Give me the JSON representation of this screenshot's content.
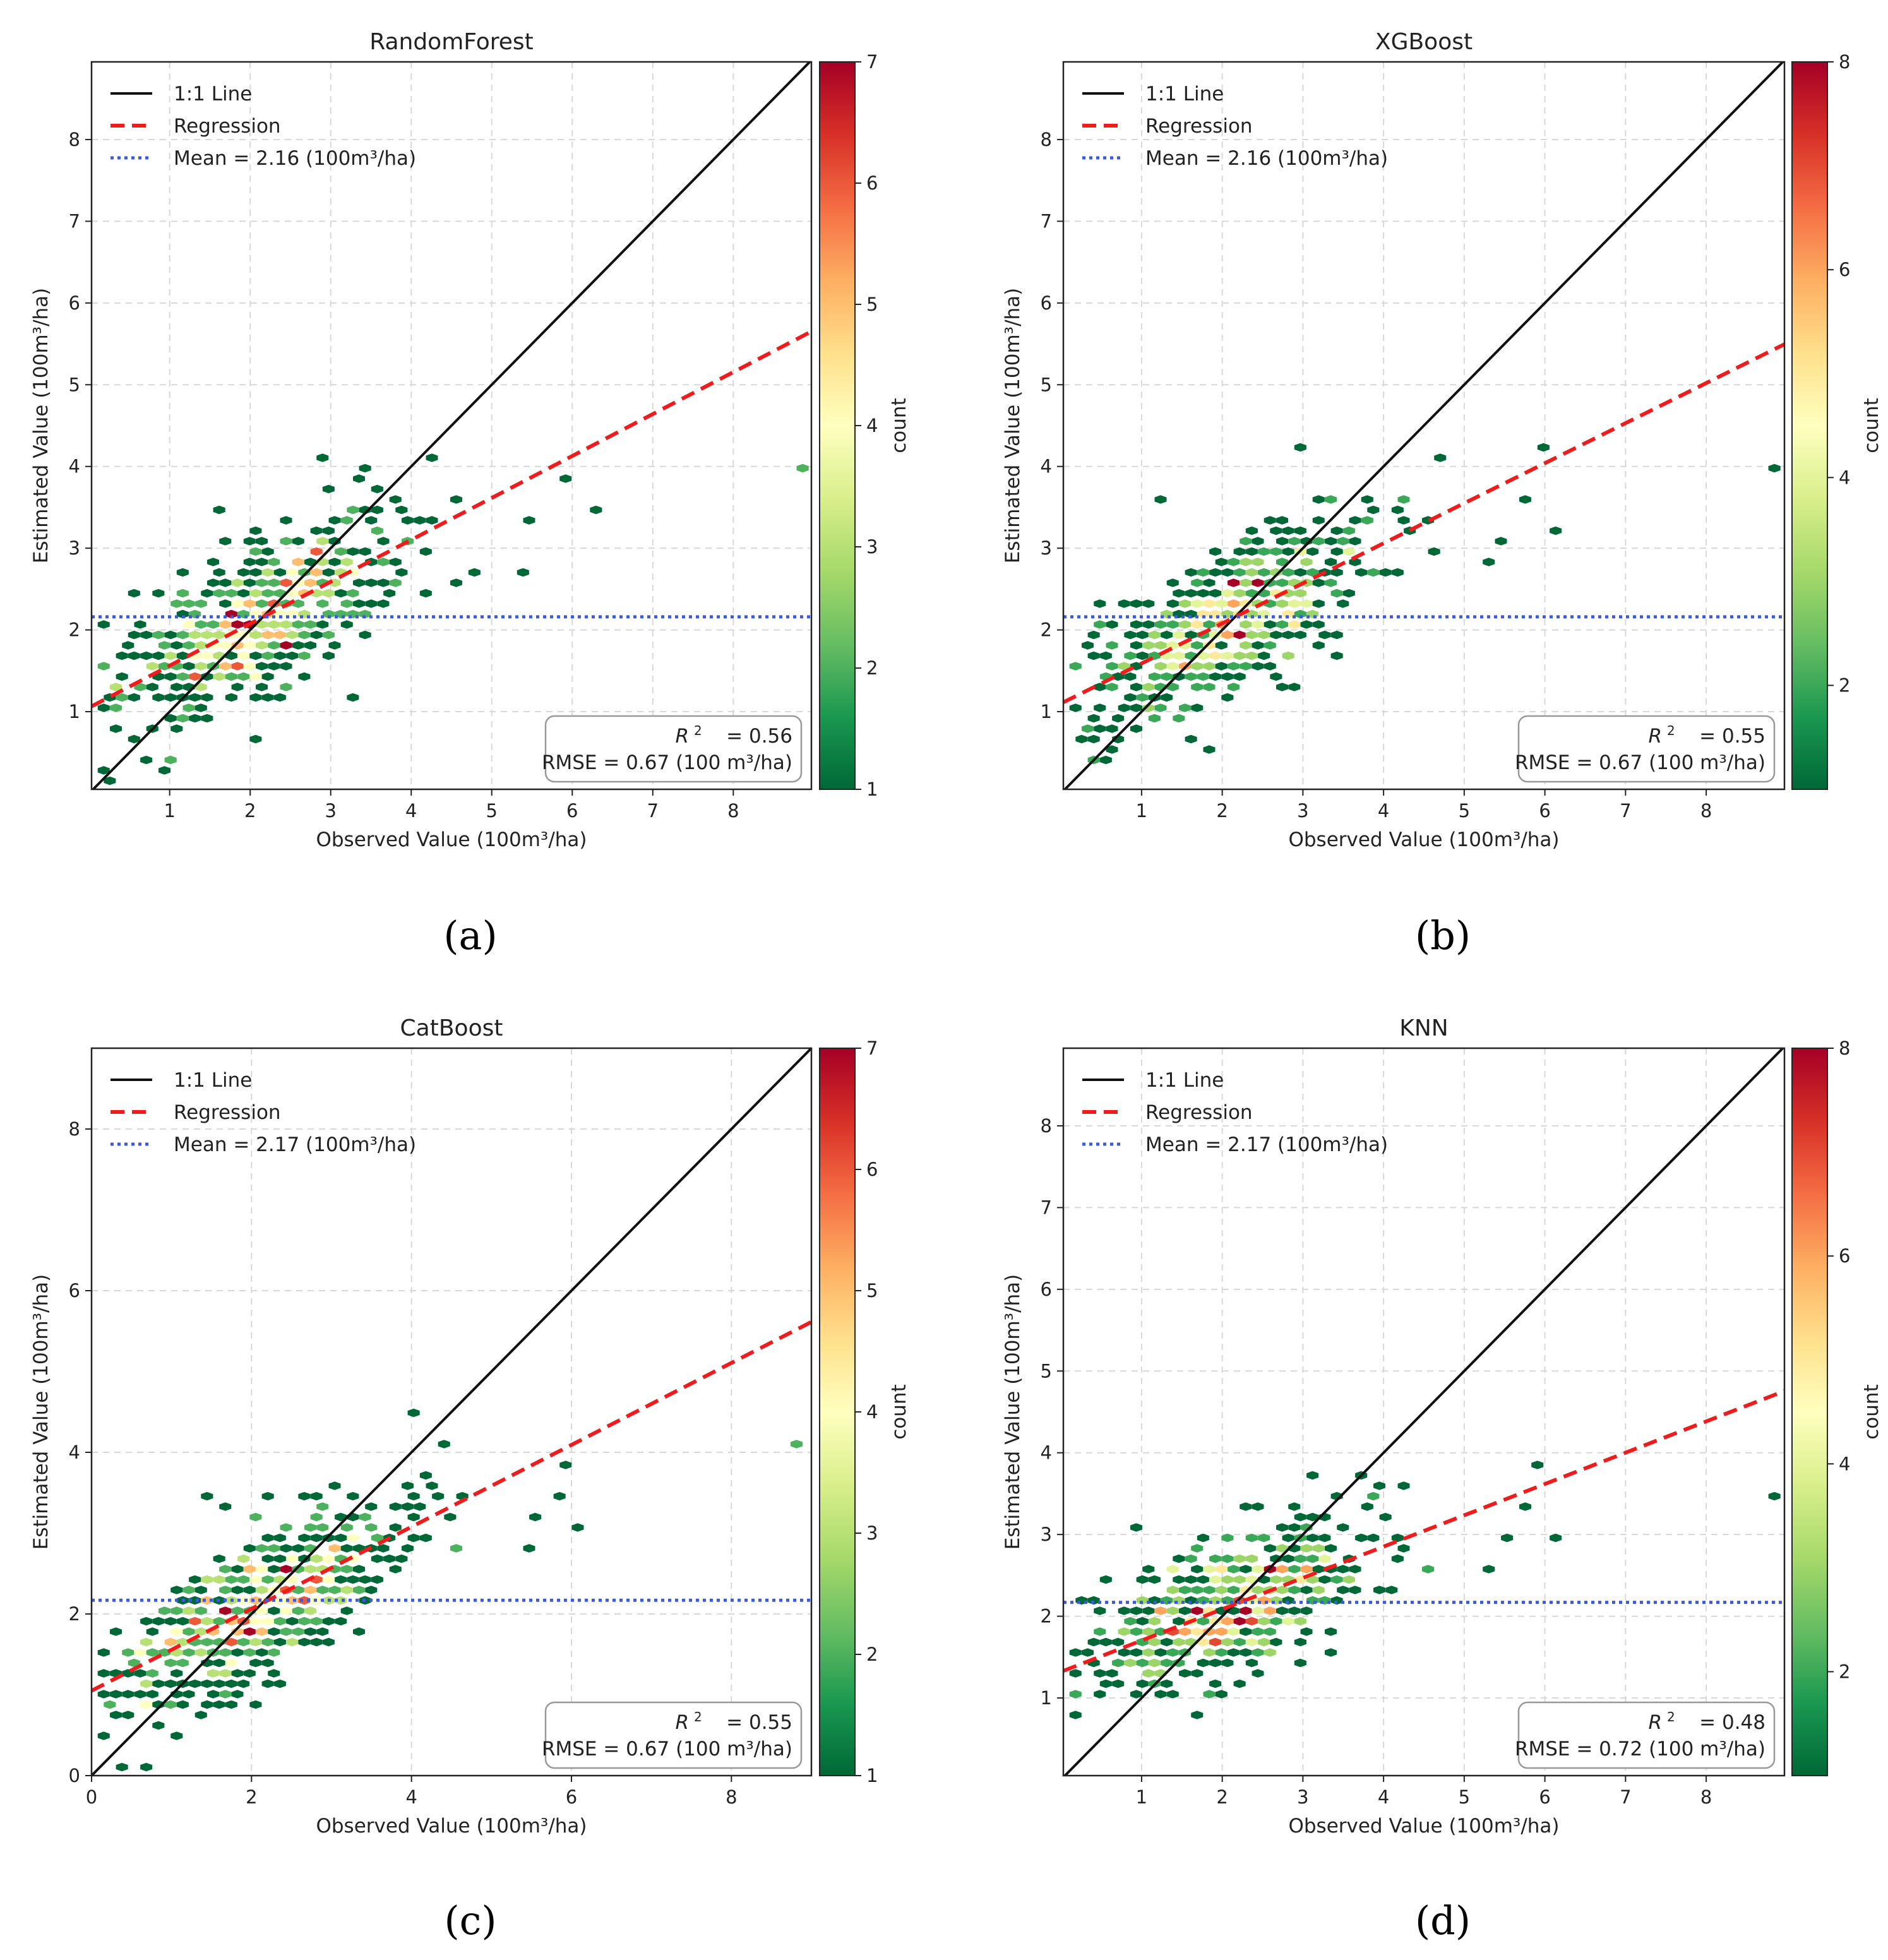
{
  "chart_data": [
    {
      "panel": "(a)",
      "type": "scatter",
      "title": "RandomForest",
      "xlabel": "Observed Value (100m³/ha)",
      "ylabel": "Estimated Value (100m³/ha)",
      "xlim": [
        0.03,
        8.97
      ],
      "ylim": [
        0.05,
        8.95
      ],
      "xticks": [
        1,
        2,
        3,
        4,
        5,
        6,
        7,
        8
      ],
      "yticks": [
        1,
        2,
        3,
        4,
        5,
        6,
        7,
        8
      ],
      "colorbar": {
        "label": "count",
        "min": 1,
        "max": 7,
        "ticks": [
          1,
          2,
          3,
          4,
          5,
          6,
          7
        ]
      },
      "legend": {
        "position": "top-left",
        "entries": [
          "1:1 Line",
          "Regression",
          "Mean = 2.16 (100m³/ha)"
        ]
      },
      "regression": {
        "intercept": 1.05,
        "slope": 0.513
      },
      "mean": 2.16,
      "stats": {
        "r2_label": "R",
        "r2_value": "= 0.56",
        "rmse": "RMSE = 0.67 (100 m³/ha)"
      },
      "outliers": [
        [
          8.8,
          3.95,
          2
        ],
        [
          6.2,
          3.42,
          1
        ],
        [
          5.95,
          3.8,
          1
        ],
        [
          5.5,
          3.28,
          1
        ],
        [
          5.35,
          2.75,
          1
        ],
        [
          4.55,
          3.6,
          1
        ],
        [
          4.5,
          2.6,
          1
        ],
        [
          4.25,
          4.1,
          1
        ],
        [
          1.6,
          3.5,
          1
        ],
        [
          2.9,
          4.1,
          1
        ],
        [
          0.9,
          0.45,
          2
        ],
        [
          0.2,
          0.3,
          1
        ]
      ]
    },
    {
      "panel": "(b)",
      "type": "scatter",
      "title": "XGBoost",
      "xlabel": "Observed Value (100m³/ha)",
      "ylabel": "Estimated Value (100m³/ha)",
      "xlim": [
        0.03,
        8.97
      ],
      "ylim": [
        0.05,
        8.95
      ],
      "xticks": [
        1,
        2,
        3,
        4,
        5,
        6,
        7,
        8
      ],
      "yticks": [
        1,
        2,
        3,
        4,
        5,
        6,
        7,
        8
      ],
      "colorbar": {
        "label": "count",
        "min": 1,
        "max": 8,
        "ticks": [
          2,
          4,
          6,
          8
        ]
      },
      "legend": {
        "position": "top-left",
        "entries": [
          "1:1 Line",
          "Regression",
          "Mean = 2.16 (100m³/ha)"
        ]
      },
      "regression": {
        "intercept": 1.1,
        "slope": 0.49
      },
      "mean": 2.16,
      "stats": {
        "r2_label": "R",
        "r2_value": "= 0.55",
        "rmse": "RMSE = 0.67 (100 m³/ha)"
      },
      "outliers": [
        [
          8.8,
          3.95,
          1
        ],
        [
          6.1,
          3.18,
          1
        ],
        [
          5.95,
          4.25,
          1
        ],
        [
          5.8,
          3.55,
          1
        ],
        [
          5.5,
          3.1,
          1
        ],
        [
          5.3,
          2.8,
          1
        ],
        [
          4.5,
          3.35,
          1
        ],
        [
          2.9,
          4.18,
          1
        ],
        [
          1.2,
          3.55,
          1
        ],
        [
          0.3,
          0.4,
          1
        ],
        [
          0.55,
          0.4,
          1
        ]
      ]
    },
    {
      "panel": "(c)",
      "type": "scatter",
      "title": "CatBoost",
      "xlabel": "Observed Value (100m³/ha)",
      "ylabel": "Estimated Value (100m³/ha)",
      "xlim": [
        0,
        9
      ],
      "ylim": [
        0,
        9
      ],
      "xticks": [
        0,
        2,
        4,
        6,
        8
      ],
      "yticks": [
        0,
        2,
        4,
        6,
        8
      ],
      "colorbar": {
        "label": "count",
        "min": 1,
        "max": 7,
        "ticks": [
          1,
          2,
          3,
          4,
          5,
          6,
          7
        ]
      },
      "legend": {
        "position": "top-left",
        "entries": [
          "1:1 Line",
          "Regression",
          "Mean = 2.17 (100m³/ha)"
        ]
      },
      "regression": {
        "intercept": 1.05,
        "slope": 0.507
      },
      "mean": 2.17,
      "stats": {
        "r2_label": "R",
        "r2_value": "= 0.55",
        "rmse": "RMSE = 0.67 (100 m³/ha)"
      },
      "outliers": [
        [
          8.8,
          4.1,
          2
        ],
        [
          6.1,
          3.05,
          1
        ],
        [
          6.0,
          3.85,
          1
        ],
        [
          5.8,
          3.5,
          1
        ],
        [
          5.5,
          3.15,
          1
        ],
        [
          5.4,
          2.75,
          1
        ],
        [
          4.6,
          2.75,
          2
        ],
        [
          4.4,
          4.1,
          1
        ],
        [
          4.0,
          4.45,
          1
        ],
        [
          1.4,
          3.4,
          1
        ],
        [
          0.25,
          0.15,
          1
        ],
        [
          0.6,
          0.15,
          1
        ]
      ]
    },
    {
      "panel": "(d)",
      "type": "scatter",
      "title": "KNN",
      "xlabel": "Observed Value (100m³/ha)",
      "ylabel": "Estimated Value (100m³/ha)",
      "xlim": [
        0.03,
        8.97
      ],
      "ylim": [
        0.05,
        8.95
      ],
      "xticks": [
        1,
        2,
        3,
        4,
        5,
        6,
        7,
        8
      ],
      "yticks": [
        1,
        2,
        3,
        4,
        5,
        6,
        7,
        8
      ],
      "colorbar": {
        "label": "count",
        "min": 1,
        "max": 8,
        "ticks": [
          2,
          4,
          6,
          8
        ]
      },
      "legend": {
        "position": "top-left",
        "entries": [
          "1:1 Line",
          "Regression",
          "Mean = 2.17 (100m³/ha)"
        ]
      },
      "regression": {
        "intercept": 1.32,
        "slope": 0.383
      },
      "mean": 2.17,
      "stats": {
        "r2_label": "R",
        "r2_value": "= 0.48",
        "rmse": "RMSE = 0.72 (100 m³/ha)"
      },
      "outliers": [
        [
          8.8,
          3.45,
          1
        ],
        [
          6.1,
          3.0,
          1
        ],
        [
          5.95,
          3.82,
          1
        ],
        [
          5.8,
          3.3,
          1
        ],
        [
          5.4,
          3.0,
          1
        ],
        [
          5.3,
          2.58,
          1
        ],
        [
          4.55,
          2.62,
          2
        ],
        [
          3.6,
          3.75,
          1
        ],
        [
          3.0,
          3.75,
          1
        ],
        [
          0.15,
          0.85,
          1
        ],
        [
          1.0,
          3.1,
          1
        ]
      ]
    }
  ],
  "captions": {
    "a": "(a)",
    "b": "(b)",
    "c": "(c)",
    "d": "(d)"
  }
}
